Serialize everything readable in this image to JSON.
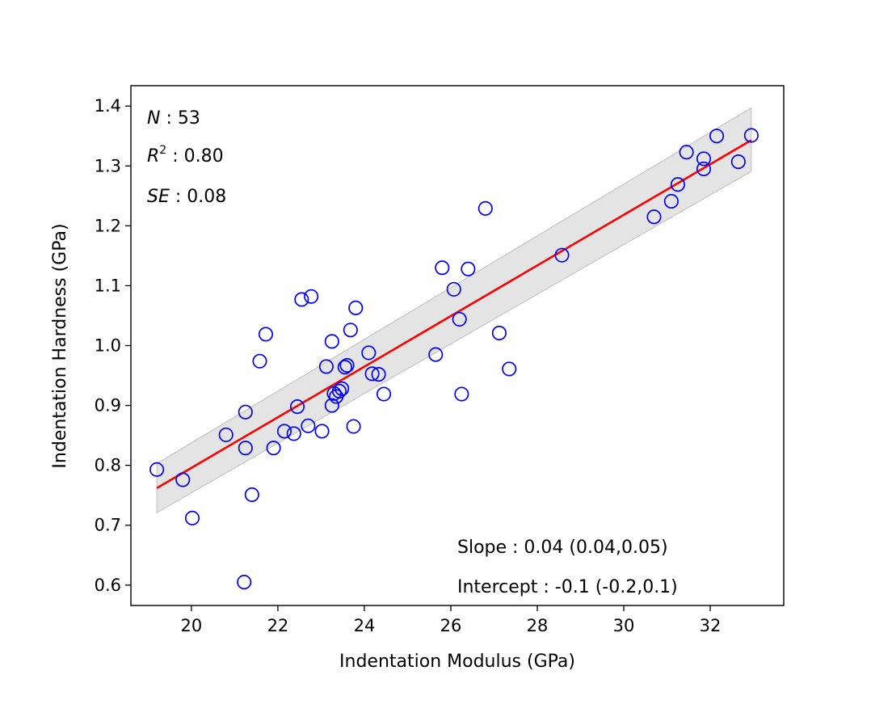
{
  "chart_data": {
    "type": "scatter",
    "xlabel": "Indentation Modulus (GPa)",
    "ylabel": "Indentation Hardness (GPa)",
    "xlim": [
      18.6,
      33.7
    ],
    "ylim": [
      0.566,
      1.434
    ],
    "x_ticks": [
      20,
      22,
      24,
      26,
      28,
      30,
      32
    ],
    "y_ticks": [
      0.6,
      0.7,
      0.8,
      0.9,
      1.0,
      1.1,
      1.2,
      1.3,
      1.4
    ],
    "x_tick_labels": [
      "20",
      "22",
      "24",
      "26",
      "28",
      "30",
      "32"
    ],
    "y_tick_labels": [
      "0.6",
      "0.7",
      "0.8",
      "0.9",
      "1.0",
      "1.1",
      "1.2",
      "1.3",
      "1.4"
    ],
    "grid": false,
    "marker_color": "#0000ff",
    "fit_color": "#ff0000",
    "band_color": "#d9d9d9",
    "fit_line": {
      "x": [
        19.2,
        32.95
      ],
      "y": [
        0.762,
        1.343
      ]
    },
    "confidence_band": {
      "x": [
        19.2,
        32.95
      ],
      "upper": [
        0.803,
        1.397
      ],
      "lower": [
        0.721,
        1.291
      ]
    },
    "annotations": {
      "n": {
        "symbol": "N",
        "sep": " : ",
        "value": "53"
      },
      "r2": {
        "symbol": "R",
        "sup": "2",
        "sep": " : ",
        "value": "0.80"
      },
      "se": {
        "symbol": "SE",
        "sep": " : ",
        "value": "0.08"
      },
      "slope": "Slope : 0.04 (0.04,0.05)",
      "intercept": "Intercept : -0.1 (-0.2,0.1)"
    },
    "points": [
      [
        19.2,
        0.793
      ],
      [
        19.8,
        0.776
      ],
      [
        20.02,
        0.712
      ],
      [
        20.8,
        0.851
      ],
      [
        21.22,
        0.605
      ],
      [
        21.25,
        0.889
      ],
      [
        21.25,
        0.829
      ],
      [
        21.4,
        0.751
      ],
      [
        21.58,
        0.974
      ],
      [
        21.72,
        1.019
      ],
      [
        21.9,
        0.829
      ],
      [
        22.15,
        0.857
      ],
      [
        22.37,
        0.853
      ],
      [
        22.45,
        0.898
      ],
      [
        22.55,
        1.077
      ],
      [
        22.7,
        0.866
      ],
      [
        22.77,
        1.082
      ],
      [
        23.02,
        0.857
      ],
      [
        23.12,
        0.965
      ],
      [
        23.25,
        1.007
      ],
      [
        23.25,
        0.9
      ],
      [
        23.3,
        0.92
      ],
      [
        23.35,
        0.915
      ],
      [
        23.42,
        0.924
      ],
      [
        23.48,
        0.928
      ],
      [
        23.55,
        0.964
      ],
      [
        23.6,
        0.967
      ],
      [
        23.68,
        1.026
      ],
      [
        23.75,
        0.865
      ],
      [
        23.8,
        1.063
      ],
      [
        24.1,
        0.988
      ],
      [
        24.18,
        0.953
      ],
      [
        24.33,
        0.952
      ],
      [
        24.45,
        0.919
      ],
      [
        25.65,
        0.985
      ],
      [
        25.8,
        1.13
      ],
      [
        26.07,
        1.094
      ],
      [
        26.2,
        1.044
      ],
      [
        26.25,
        0.919
      ],
      [
        26.4,
        1.128
      ],
      [
        26.8,
        1.229
      ],
      [
        27.12,
        1.021
      ],
      [
        27.35,
        0.961
      ],
      [
        28.57,
        1.151
      ],
      [
        30.7,
        1.215
      ],
      [
        31.1,
        1.241
      ],
      [
        31.25,
        1.269
      ],
      [
        31.45,
        1.323
      ],
      [
        31.85,
        1.312
      ],
      [
        31.85,
        1.295
      ],
      [
        32.15,
        1.35
      ],
      [
        32.65,
        1.307
      ],
      [
        32.95,
        1.351
      ]
    ]
  }
}
